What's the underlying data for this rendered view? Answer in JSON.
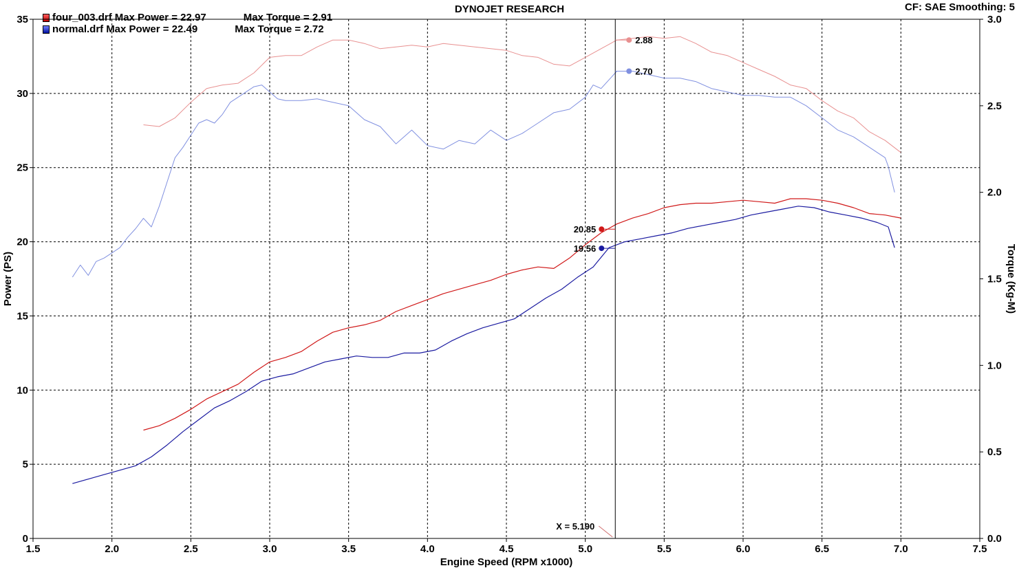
{
  "header": {
    "title": "DYNOJET RESEARCH",
    "settings": "CF: SAE  Smoothing: 5"
  },
  "legend": [
    {
      "file": "four_003.drf",
      "power_text": "Max Power = 22.97",
      "torque_text": "Max Torque = 2.91",
      "color": "#e02020"
    },
    {
      "file": "normal.drf",
      "power_text": "Max Power = 22.49",
      "torque_text": "Max Torque = 2.72",
      "color": "#2030d0"
    }
  ],
  "cursor": {
    "label": "X = 5.190",
    "x": 5.19
  },
  "chart_data": {
    "type": "line",
    "xlabel": "Engine Speed (RPM x1000)",
    "ylabel": "Power (PS)",
    "y2label": "Torque (Kg-M)",
    "xlim": [
      1.5,
      7.5
    ],
    "ylim": [
      0,
      35
    ],
    "y2lim": [
      0,
      3
    ],
    "xticks": [
      "1.5",
      "2.0",
      "2.5",
      "3.0",
      "3.5",
      "4.0",
      "4.5",
      "5.0",
      "5.5",
      "6.0",
      "6.5",
      "7.0",
      "7.5"
    ],
    "yticks": [
      "0",
      "5",
      "10",
      "15",
      "20",
      "25",
      "30",
      "35"
    ],
    "y2ticks": [
      "0.0",
      "0.5",
      "1.0",
      "1.5",
      "2.0",
      "2.5",
      "3.0"
    ],
    "grid": true,
    "legend_position": "top-left",
    "series": [
      {
        "name": "four_003.drf",
        "kind": "power",
        "axis": "left",
        "color": "#d01818",
        "width": 1.2,
        "x": [
          2.2,
          2.3,
          2.4,
          2.5,
          2.6,
          2.7,
          2.8,
          2.9,
          3.0,
          3.1,
          3.2,
          3.3,
          3.4,
          3.5,
          3.6,
          3.7,
          3.8,
          3.9,
          4.0,
          4.1,
          4.2,
          4.3,
          4.4,
          4.5,
          4.6,
          4.7,
          4.8,
          4.9,
          5.0,
          5.1,
          5.2,
          5.3,
          5.4,
          5.5,
          5.6,
          5.7,
          5.8,
          5.9,
          6.0,
          6.1,
          6.2,
          6.3,
          6.4,
          6.5,
          6.6,
          6.7,
          6.8,
          6.9,
          7.0
        ],
        "y": [
          7.3,
          7.6,
          8.1,
          8.7,
          9.4,
          9.9,
          10.4,
          11.2,
          11.9,
          12.2,
          12.6,
          13.3,
          13.9,
          14.2,
          14.4,
          14.7,
          15.3,
          15.7,
          16.1,
          16.5,
          16.8,
          17.1,
          17.4,
          17.8,
          18.1,
          18.3,
          18.2,
          18.9,
          19.8,
          20.6,
          21.2,
          21.6,
          21.9,
          22.3,
          22.5,
          22.6,
          22.6,
          22.7,
          22.8,
          22.7,
          22.6,
          22.9,
          22.9,
          22.8,
          22.6,
          22.3,
          21.9,
          21.8,
          21.6
        ]
      },
      {
        "name": "normal.drf",
        "kind": "power",
        "axis": "left",
        "color": "#1a1aa0",
        "width": 1.2,
        "x": [
          1.75,
          1.85,
          1.95,
          2.05,
          2.15,
          2.25,
          2.35,
          2.45,
          2.55,
          2.65,
          2.75,
          2.85,
          2.95,
          3.05,
          3.15,
          3.25,
          3.35,
          3.45,
          3.55,
          3.65,
          3.75,
          3.85,
          3.95,
          4.05,
          4.15,
          4.25,
          4.35,
          4.45,
          4.55,
          4.65,
          4.75,
          4.85,
          4.95,
          5.05,
          5.15,
          5.25,
          5.35,
          5.45,
          5.55,
          5.65,
          5.75,
          5.85,
          5.95,
          6.05,
          6.15,
          6.25,
          6.35,
          6.45,
          6.55,
          6.65,
          6.75,
          6.85,
          6.92,
          6.96
        ],
        "y": [
          3.7,
          4.0,
          4.3,
          4.6,
          4.9,
          5.5,
          6.3,
          7.2,
          8.0,
          8.8,
          9.3,
          9.9,
          10.6,
          10.9,
          11.1,
          11.5,
          11.9,
          12.1,
          12.3,
          12.2,
          12.2,
          12.5,
          12.5,
          12.7,
          13.3,
          13.8,
          14.2,
          14.5,
          14.8,
          15.5,
          16.2,
          16.8,
          17.6,
          18.3,
          19.6,
          20.0,
          20.2,
          20.4,
          20.6,
          20.9,
          21.1,
          21.3,
          21.5,
          21.8,
          22.0,
          22.2,
          22.4,
          22.3,
          22.0,
          21.8,
          21.6,
          21.3,
          21.0,
          19.6
        ]
      },
      {
        "name": "four_003.drf",
        "kind": "torque",
        "axis": "right",
        "color": "#e89090",
        "width": 1,
        "x": [
          2.2,
          2.3,
          2.4,
          2.5,
          2.6,
          2.7,
          2.8,
          2.9,
          3.0,
          3.1,
          3.2,
          3.3,
          3.4,
          3.5,
          3.6,
          3.7,
          3.8,
          3.9,
          4.0,
          4.1,
          4.2,
          4.3,
          4.4,
          4.5,
          4.6,
          4.7,
          4.8,
          4.9,
          5.0,
          5.1,
          5.2,
          5.3,
          5.4,
          5.5,
          5.6,
          5.7,
          5.8,
          5.9,
          6.0,
          6.1,
          6.2,
          6.3,
          6.4,
          6.5,
          6.6,
          6.7,
          6.8,
          6.9,
          7.0
        ],
        "y": [
          2.39,
          2.38,
          2.43,
          2.52,
          2.6,
          2.62,
          2.63,
          2.69,
          2.78,
          2.79,
          2.79,
          2.84,
          2.88,
          2.88,
          2.86,
          2.83,
          2.84,
          2.85,
          2.84,
          2.86,
          2.85,
          2.84,
          2.83,
          2.82,
          2.79,
          2.78,
          2.74,
          2.73,
          2.78,
          2.83,
          2.88,
          2.89,
          2.9,
          2.89,
          2.9,
          2.86,
          2.81,
          2.79,
          2.75,
          2.71,
          2.67,
          2.62,
          2.6,
          2.53,
          2.47,
          2.43,
          2.35,
          2.3,
          2.23
        ]
      },
      {
        "name": "normal.drf",
        "kind": "torque",
        "axis": "right",
        "color": "#8090e0",
        "width": 1,
        "x": [
          1.75,
          1.8,
          1.85,
          1.9,
          1.95,
          2.0,
          2.05,
          2.1,
          2.15,
          2.2,
          2.25,
          2.3,
          2.35,
          2.4,
          2.45,
          2.5,
          2.55,
          2.6,
          2.65,
          2.7,
          2.75,
          2.8,
          2.85,
          2.9,
          2.95,
          3.0,
          3.05,
          3.1,
          3.2,
          3.3,
          3.4,
          3.5,
          3.6,
          3.7,
          3.8,
          3.9,
          4.0,
          4.1,
          4.2,
          4.3,
          4.4,
          4.5,
          4.6,
          4.7,
          4.8,
          4.9,
          5.0,
          5.05,
          5.1,
          5.15,
          5.2,
          5.3,
          5.4,
          5.5,
          5.6,
          5.7,
          5.8,
          5.9,
          6.0,
          6.1,
          6.2,
          6.3,
          6.4,
          6.5,
          6.6,
          6.7,
          6.8,
          6.9,
          6.92,
          6.96
        ],
        "y": [
          1.51,
          1.58,
          1.52,
          1.6,
          1.62,
          1.65,
          1.68,
          1.74,
          1.79,
          1.85,
          1.8,
          1.92,
          2.06,
          2.2,
          2.26,
          2.33,
          2.4,
          2.42,
          2.4,
          2.45,
          2.52,
          2.55,
          2.58,
          2.61,
          2.62,
          2.58,
          2.54,
          2.53,
          2.53,
          2.54,
          2.52,
          2.5,
          2.42,
          2.38,
          2.28,
          2.36,
          2.27,
          2.25,
          2.3,
          2.28,
          2.36,
          2.3,
          2.34,
          2.4,
          2.46,
          2.48,
          2.55,
          2.62,
          2.6,
          2.65,
          2.7,
          2.7,
          2.68,
          2.66,
          2.66,
          2.64,
          2.6,
          2.58,
          2.56,
          2.56,
          2.55,
          2.55,
          2.5,
          2.43,
          2.36,
          2.32,
          2.26,
          2.2,
          2.15,
          2.0
        ]
      }
    ],
    "markers": [
      {
        "series": "four_003.drf",
        "kind": "power",
        "value": 20.85,
        "label": "20.85",
        "color": "#d01818"
      },
      {
        "series": "normal.drf",
        "kind": "power",
        "value": 19.56,
        "label": "19.56",
        "color": "#1a1aa0"
      },
      {
        "series": "four_003.drf",
        "kind": "torque",
        "value": 2.88,
        "label": "2.88",
        "color": "#e89090"
      },
      {
        "series": "normal.drf",
        "kind": "torque",
        "value": 2.7,
        "label": "2.70",
        "color": "#8090e0"
      }
    ]
  }
}
